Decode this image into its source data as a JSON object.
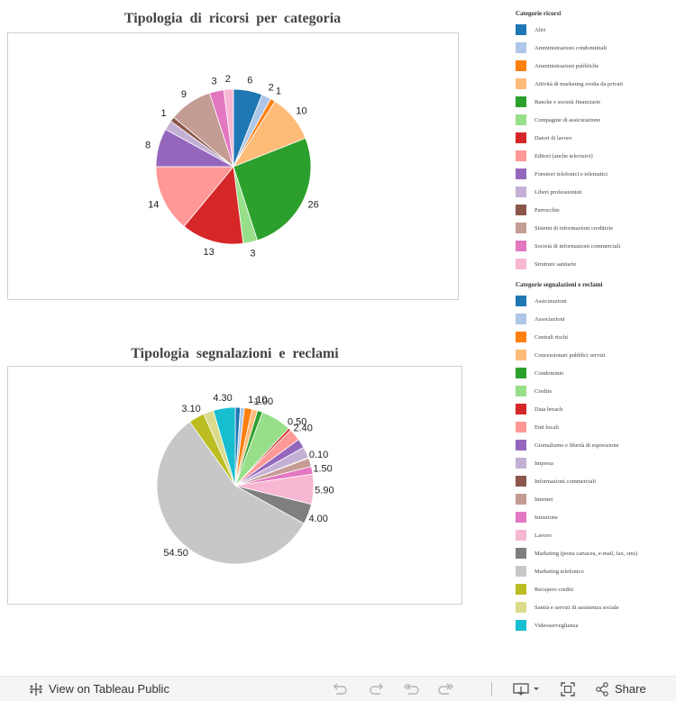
{
  "chart_data": [
    {
      "type": "pie",
      "title": "Tipologia di ricorsi per categoria",
      "legend_title": "Categorie ricorsi",
      "legend_position": "right",
      "slices": [
        {
          "label": "Altri",
          "value": 6,
          "color": "#1f77b4",
          "data_label": "6"
        },
        {
          "label": "Amministrazioni condominiali",
          "value": 2,
          "color": "#aec7e8",
          "data_label": "2"
        },
        {
          "label": "Amministrazioni pubbliche",
          "value": 1,
          "color": "#ff7f0e",
          "data_label": "1"
        },
        {
          "label": "Attività di marketing svolta da privati",
          "value": 10,
          "color": "#ffbb78",
          "data_label": "10"
        },
        {
          "label": "Banche e società finanziarie",
          "value": 26,
          "color": "#2ca02c",
          "data_label": "26"
        },
        {
          "label": "Compagnie di assicurazione",
          "value": 3,
          "color": "#98df8a",
          "data_label": "3"
        },
        {
          "label": "Datori di lavoro",
          "value": 13,
          "color": "#d62728",
          "data_label": "13"
        },
        {
          "label": "Editori (anche televisivi)",
          "value": 14,
          "color": "#ff9896",
          "data_label": "14"
        },
        {
          "label": "Fornitori telefonici e telematici",
          "value": 8,
          "color": "#9467bd",
          "data_label": "8"
        },
        {
          "label": "Liberi professionisti",
          "value": 2,
          "color": "#c5b0d5",
          "data_label": ""
        },
        {
          "label": "Parrocchie",
          "value": 1,
          "color": "#8c564b",
          "data_label": "1"
        },
        {
          "label": "Sistemi di informazioni creditizie",
          "value": 9,
          "color": "#c49c94",
          "data_label": "9"
        },
        {
          "label": "Società di informazioni commerciali",
          "value": 3,
          "color": "#e377c2",
          "data_label": "3"
        },
        {
          "label": "Strutture sanitarie",
          "value": 2,
          "color": "#f7b6d2",
          "data_label": "2"
        }
      ]
    },
    {
      "type": "pie",
      "title": "Tipologia segnalazioni e reclami",
      "legend_title": "Categorie segnalazioni e reclami",
      "legend_position": "right",
      "slices": [
        {
          "label": "Assicurazioni",
          "value": 1.0,
          "color": "#1f77b4",
          "data_label": ""
        },
        {
          "label": "Associazioni",
          "value": 0.8,
          "color": "#aec7e8",
          "data_label": ""
        },
        {
          "label": "Centrali rischi",
          "value": 1.5,
          "color": "#ff7f0e",
          "data_label": ""
        },
        {
          "label": "Concessionari pubblici servizi",
          "value": 1.1,
          "color": "#ffbb78",
          "data_label": "1.10"
        },
        {
          "label": "Condominio",
          "value": 1.0,
          "color": "#2ca02c",
          "data_label": "1.00"
        },
        {
          "label": "Credito",
          "value": 6.0,
          "color": "#98df8a",
          "data_label": ""
        },
        {
          "label": "Data breach",
          "value": 0.5,
          "color": "#d62728",
          "data_label": "0.50"
        },
        {
          "label": "Enti locali",
          "value": 2.4,
          "color": "#ff9896",
          "data_label": "2.40"
        },
        {
          "label": "Giornalismo e libertà di espressione",
          "value": 1.8,
          "color": "#9467bd",
          "data_label": ""
        },
        {
          "label": "Impresa",
          "value": 2.2,
          "color": "#c5b0d5",
          "data_label": ""
        },
        {
          "label": "Informazioni commerciali",
          "value": 0.1,
          "color": "#8c564b",
          "data_label": "0.10"
        },
        {
          "label": "Internet",
          "value": 1.7,
          "color": "#c49c94",
          "data_label": ""
        },
        {
          "label": "Istruzione",
          "value": 1.5,
          "color": "#e377c2",
          "data_label": "1.50"
        },
        {
          "label": "Lavoro",
          "value": 5.9,
          "color": "#f7b6d2",
          "data_label": "5.90"
        },
        {
          "label": "Marketing (posta cartacea, e-mail, fax, sms)",
          "value": 4.0,
          "color": "#7f7f7f",
          "data_label": "4.00"
        },
        {
          "label": "Marketing telefonico",
          "value": 54.5,
          "color": "#c7c7c7",
          "data_label": "54.50"
        },
        {
          "label": "Recupero crediti",
          "value": 3.1,
          "color": "#bcbd22",
          "data_label": "3.10"
        },
        {
          "label": "Sanità e servizi di assistenza sociale",
          "value": 2.0,
          "color": "#dbdb8d",
          "data_label": ""
        },
        {
          "label": "Videosorveglianza",
          "value": 4.3,
          "color": "#17becf",
          "data_label": "4.30"
        }
      ]
    }
  ],
  "footer": {
    "view_link": "View on Tableau Public",
    "share_label": "Share"
  }
}
